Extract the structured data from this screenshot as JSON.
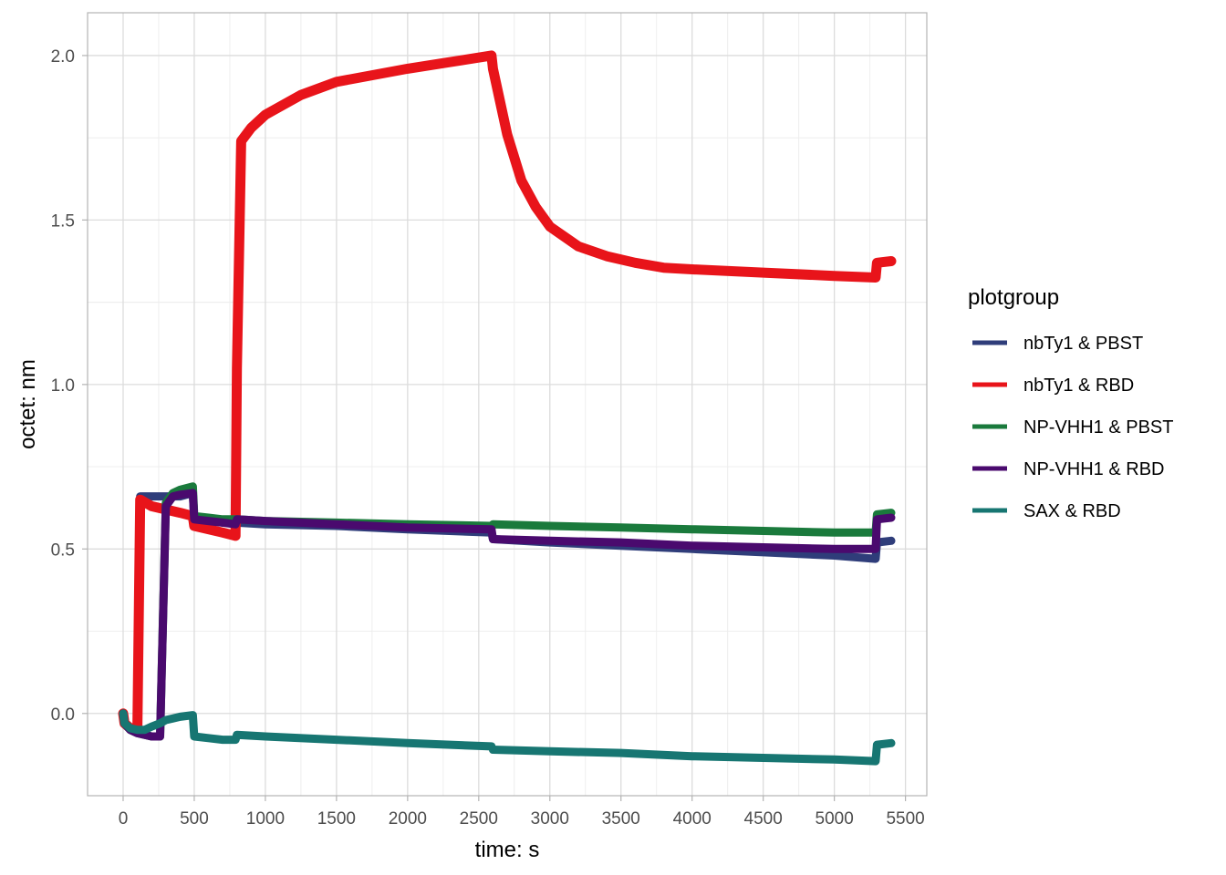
{
  "chart_data": {
    "type": "line",
    "xlabel": "time: s",
    "ylabel": "octet: nm",
    "xlim": [
      -250,
      5650
    ],
    "ylim": [
      -0.25,
      2.13
    ],
    "x_ticks": [
      0,
      500,
      1000,
      1500,
      2000,
      2500,
      3000,
      3500,
      4000,
      4500,
      5000,
      5500
    ],
    "x_tick_labels": [
      "0",
      "500",
      "1000",
      "1500",
      "2000",
      "2500",
      "3000",
      "3500",
      "4000",
      "4500",
      "5000",
      "5500"
    ],
    "y_ticks": [
      0.0,
      0.5,
      1.0,
      1.5,
      2.0
    ],
    "y_tick_labels": [
      "0.0",
      "0.5",
      "1.0",
      "1.5",
      "2.0"
    ],
    "grid": true,
    "legend": {
      "title": "plotgroup",
      "placement": "right"
    },
    "series": [
      {
        "name": "nbTy1 & PBST",
        "color": "#2f3d7a",
        "x": [
          0,
          10,
          50,
          100,
          120,
          200,
          260,
          300,
          350,
          400,
          490,
          500,
          600,
          700,
          790,
          800,
          1000,
          1500,
          2000,
          2590,
          2600,
          3000,
          3500,
          4000,
          4500,
          5000,
          5290,
          5300,
          5400
        ],
        "y": [
          0.0,
          -0.03,
          -0.045,
          -0.05,
          0.66,
          0.66,
          0.66,
          0.66,
          0.66,
          0.66,
          0.67,
          0.59,
          0.59,
          0.58,
          0.58,
          0.58,
          0.575,
          0.57,
          0.56,
          0.55,
          0.53,
          0.52,
          0.51,
          0.5,
          0.49,
          0.48,
          0.47,
          0.52,
          0.525
        ]
      },
      {
        "name": "nbTy1 & RBD",
        "color": "#e8141a",
        "x": [
          0,
          10,
          50,
          100,
          120,
          200,
          300,
          400,
          490,
          500,
          600,
          700,
          790,
          800,
          830,
          900,
          1000,
          1250,
          1500,
          2000,
          2300,
          2590,
          2600,
          2700,
          2800,
          2900,
          3000,
          3200,
          3400,
          3600,
          3800,
          4000,
          4500,
          5000,
          5290,
          5300,
          5400
        ],
        "y": [
          0.0,
          -0.03,
          -0.045,
          -0.05,
          0.65,
          0.63,
          0.62,
          0.61,
          0.6,
          0.57,
          0.56,
          0.55,
          0.54,
          1.05,
          1.74,
          1.78,
          1.82,
          1.88,
          1.92,
          1.96,
          1.98,
          2.0,
          1.96,
          1.76,
          1.62,
          1.54,
          1.48,
          1.42,
          1.39,
          1.37,
          1.355,
          1.35,
          1.34,
          1.33,
          1.325,
          1.37,
          1.375
        ]
      },
      {
        "name": "NP-VHH1 & PBST",
        "color": "#1a7a3c",
        "x": [
          0,
          10,
          50,
          100,
          200,
          260,
          300,
          350,
          400,
          490,
          500,
          600,
          700,
          790,
          800,
          1000,
          1500,
          2000,
          2590,
          2600,
          3000,
          3500,
          4000,
          4500,
          5000,
          5290,
          5300,
          5400
        ],
        "y": [
          0.0,
          -0.03,
          -0.05,
          -0.06,
          -0.07,
          -0.07,
          0.64,
          0.67,
          0.68,
          0.69,
          0.6,
          0.595,
          0.59,
          0.59,
          0.59,
          0.585,
          0.58,
          0.575,
          0.57,
          0.575,
          0.57,
          0.565,
          0.56,
          0.555,
          0.55,
          0.55,
          0.605,
          0.61
        ]
      },
      {
        "name": "NP-VHH1 & RBD",
        "color": "#4a0a6e",
        "x": [
          0,
          10,
          50,
          100,
          200,
          260,
          300,
          350,
          400,
          490,
          500,
          600,
          700,
          790,
          800,
          1000,
          1500,
          2000,
          2590,
          2600,
          3000,
          3500,
          4000,
          4500,
          5000,
          5290,
          5300,
          5400
        ],
        "y": [
          0.0,
          -0.03,
          -0.05,
          -0.06,
          -0.07,
          -0.07,
          0.63,
          0.66,
          0.665,
          0.67,
          0.59,
          0.585,
          0.58,
          0.575,
          0.59,
          0.585,
          0.575,
          0.565,
          0.56,
          0.53,
          0.525,
          0.52,
          0.51,
          0.505,
          0.5,
          0.5,
          0.59,
          0.595
        ]
      },
      {
        "name": "SAX & RBD",
        "color": "#177672",
        "x": [
          0,
          10,
          50,
          100,
          150,
          200,
          260,
          300,
          350,
          400,
          490,
          500,
          600,
          700,
          790,
          800,
          1000,
          1500,
          2000,
          2590,
          2600,
          3000,
          3500,
          4000,
          4500,
          5000,
          5290,
          5300,
          5400
        ],
        "y": [
          0.0,
          -0.03,
          -0.045,
          -0.05,
          -0.05,
          -0.04,
          -0.03,
          -0.02,
          -0.015,
          -0.01,
          -0.005,
          -0.07,
          -0.075,
          -0.08,
          -0.08,
          -0.065,
          -0.07,
          -0.08,
          -0.09,
          -0.1,
          -0.11,
          -0.115,
          -0.12,
          -0.13,
          -0.135,
          -0.14,
          -0.145,
          -0.095,
          -0.09
        ]
      }
    ]
  }
}
